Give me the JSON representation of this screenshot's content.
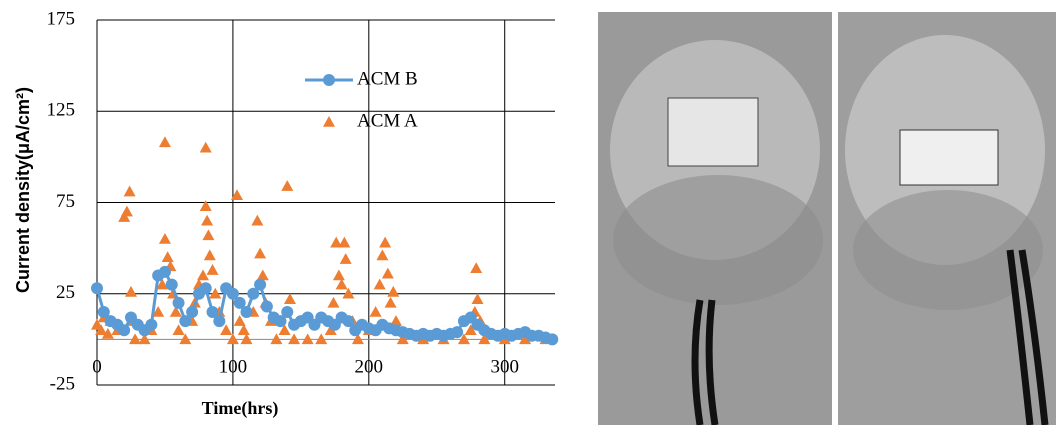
{
  "chart_data": {
    "type": "scatter",
    "x_label": "Time(hrs)",
    "y_label": "Current density(μA/cm²)",
    "xlim": [
      0,
      337
    ],
    "ylim": [
      -25,
      175
    ],
    "xticks": [
      0,
      100,
      200,
      300
    ],
    "yticks": [
      -25,
      25,
      75,
      125,
      175
    ],
    "grid": true,
    "legend": "inside",
    "series": [
      {
        "name": "ACM B",
        "color": "#5b9bd5",
        "mode": "line-markers",
        "x": [
          0,
          5,
          10,
          15,
          20,
          25,
          30,
          35,
          40,
          45,
          50,
          55,
          60,
          65,
          70,
          75,
          80,
          85,
          90,
          95,
          100,
          105,
          110,
          115,
          120,
          125,
          130,
          135,
          140,
          145,
          150,
          155,
          160,
          165,
          170,
          175,
          180,
          185,
          190,
          195,
          200,
          205,
          210,
          215,
          220,
          225,
          230,
          235,
          240,
          245,
          250,
          255,
          260,
          265,
          270,
          275,
          280,
          285,
          290,
          295,
          300,
          305,
          310,
          315,
          320,
          325,
          330,
          335
        ],
        "values": [
          28,
          15,
          10,
          8,
          5,
          12,
          8,
          5,
          8,
          35,
          37,
          30,
          20,
          10,
          15,
          25,
          28,
          15,
          10,
          28,
          25,
          20,
          15,
          25,
          30,
          18,
          12,
          10,
          15,
          8,
          10,
          12,
          8,
          12,
          10,
          8,
          12,
          10,
          5,
          8,
          6,
          5,
          8,
          6,
          5,
          4,
          3,
          2,
          3,
          2,
          3,
          2,
          3,
          4,
          10,
          12,
          8,
          5,
          3,
          2,
          3,
          2,
          3,
          4,
          2,
          2,
          1,
          0
        ]
      },
      {
        "name": "ACM A",
        "color": "#ed7d31",
        "mode": "markers",
        "x": [
          0,
          3,
          5,
          8,
          10,
          15,
          20,
          22,
          24,
          25,
          26,
          28,
          35,
          40,
          45,
          48,
          50,
          50,
          52,
          54,
          56,
          58,
          60,
          65,
          70,
          72,
          75,
          78,
          80,
          80,
          81,
          82,
          83,
          85,
          87,
          90,
          95,
          100,
          103,
          105,
          108,
          110,
          115,
          118,
          120,
          122,
          124,
          128,
          132,
          138,
          140,
          142,
          145,
          155,
          165,
          172,
          174,
          176,
          178,
          180,
          182,
          183,
          185,
          188,
          192,
          200,
          205,
          208,
          210,
          212,
          214,
          216,
          218,
          220,
          225,
          240,
          255,
          270,
          275,
          278,
          279,
          280,
          282,
          285,
          300,
          315,
          330
        ],
        "values": [
          8,
          5,
          12,
          3,
          10,
          5,
          67,
          70,
          81,
          26,
          10,
          0,
          0,
          5,
          15,
          30,
          108,
          55,
          45,
          40,
          25,
          15,
          5,
          0,
          10,
          20,
          30,
          35,
          105,
          73,
          65,
          57,
          46,
          38,
          25,
          15,
          5,
          0,
          79,
          10,
          5,
          0,
          15,
          65,
          47,
          35,
          20,
          10,
          0,
          5,
          84,
          22,
          0,
          0,
          0,
          5,
          20,
          53,
          35,
          30,
          53,
          44,
          25,
          10,
          0,
          5,
          15,
          30,
          46,
          53,
          36,
          20,
          26,
          10,
          0,
          0,
          0,
          0,
          5,
          15,
          39,
          22,
          10,
          0,
          0,
          0,
          0
        ]
      }
    ]
  }
}
